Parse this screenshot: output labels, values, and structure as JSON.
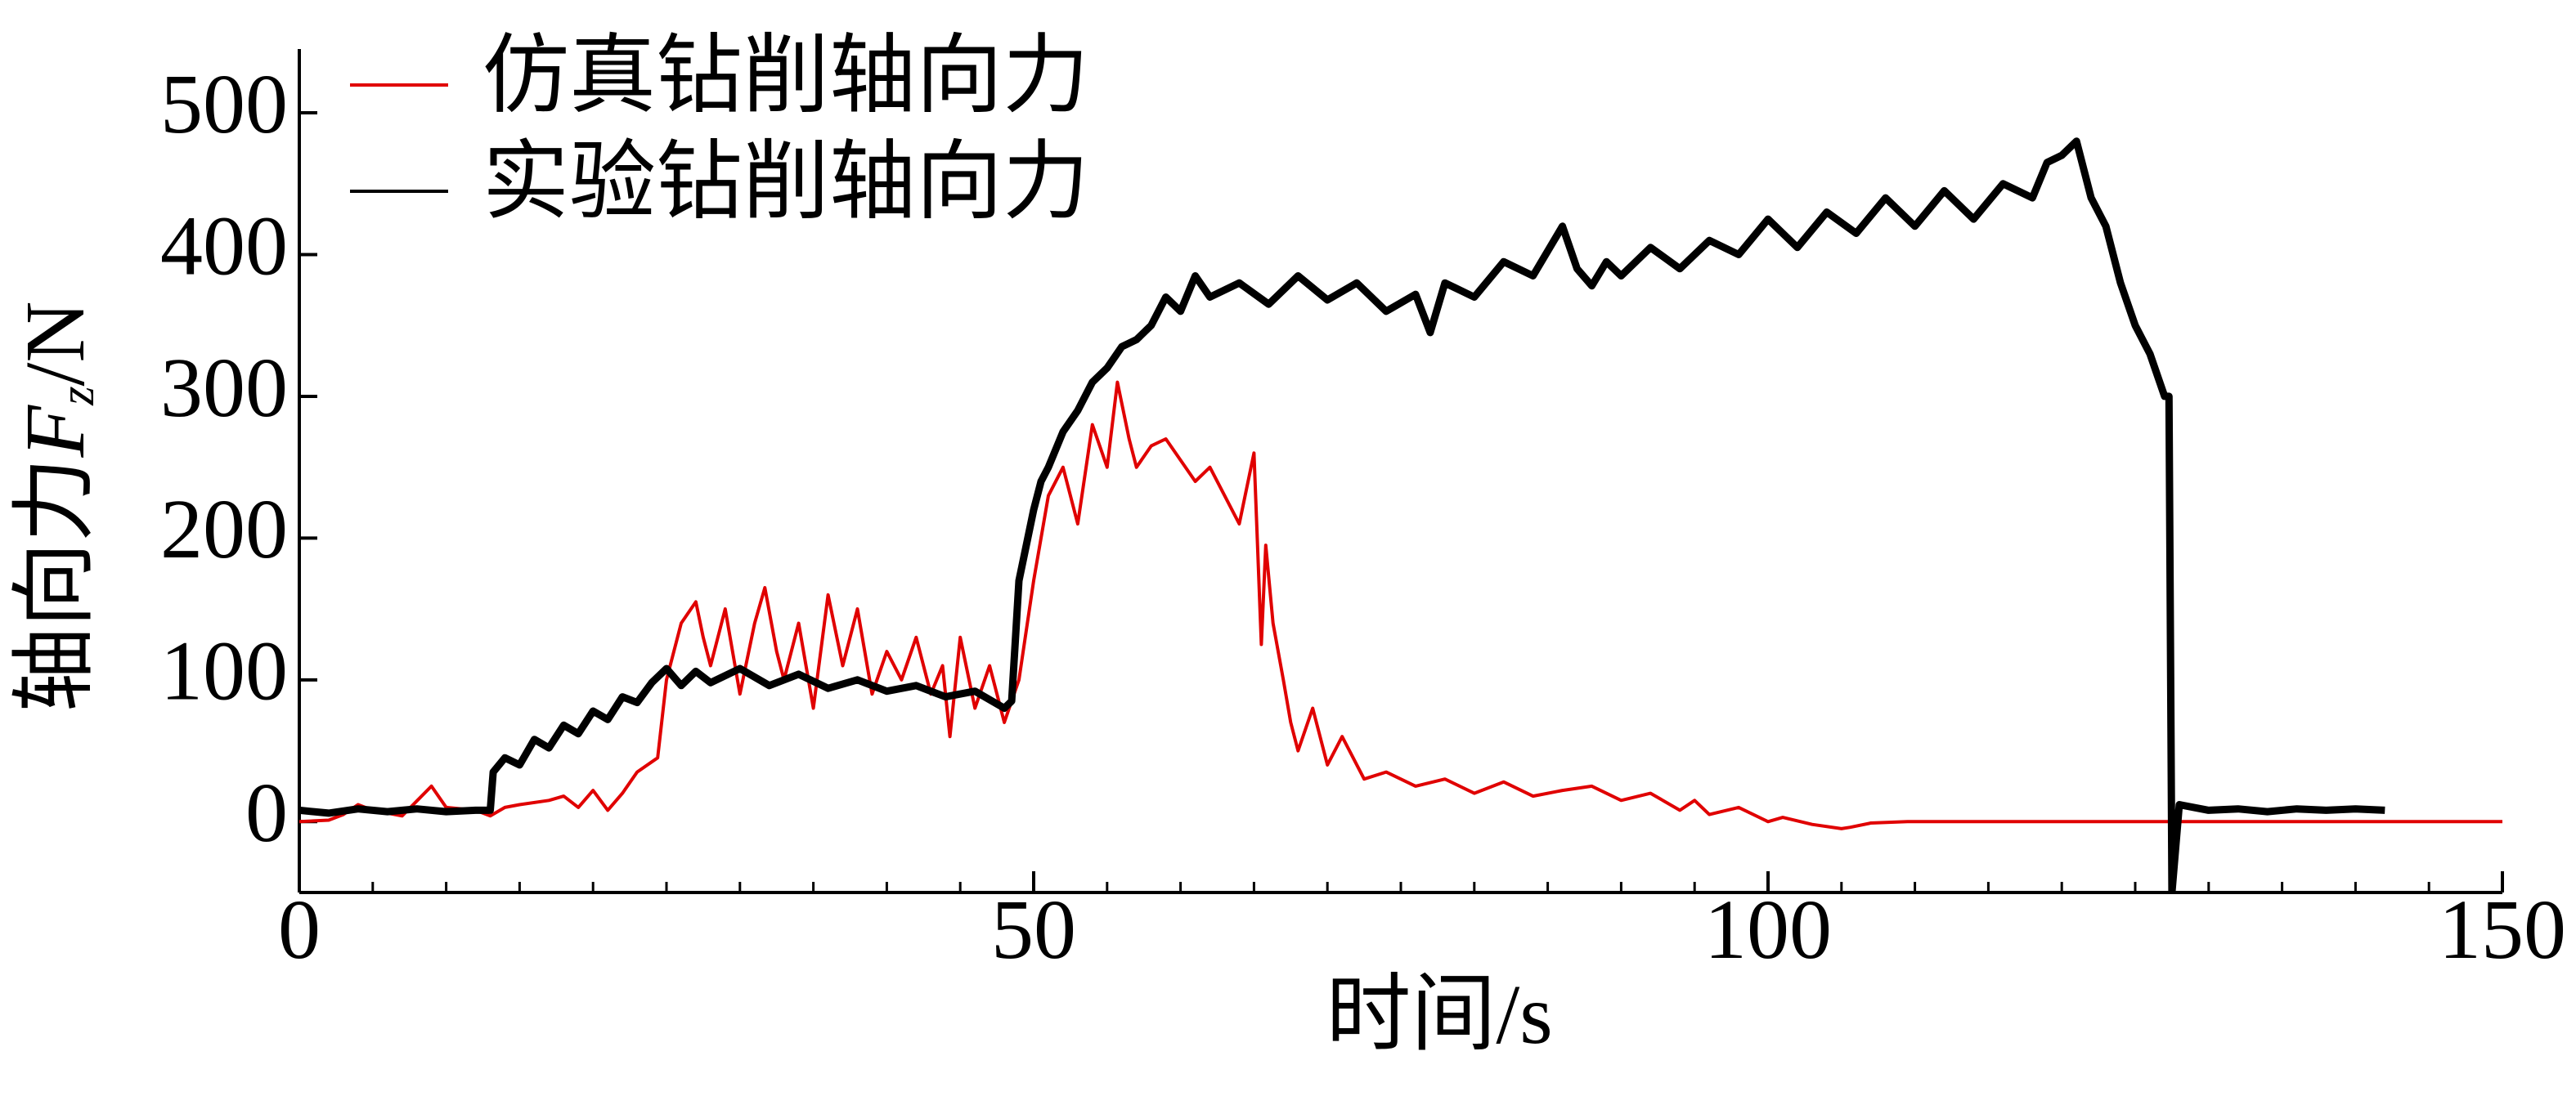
{
  "chart_data": {
    "type": "line",
    "xlabel": "时间/s",
    "ylabel": [
      "轴向力",
      "F",
      "z",
      "/N"
    ],
    "xlim": [
      0,
      150
    ],
    "ylim": [
      -50,
      545
    ],
    "xticks": [
      0,
      50,
      100,
      150
    ],
    "xminorticks": [
      5,
      10,
      15,
      20,
      25,
      30,
      35,
      40,
      45,
      55,
      60,
      65,
      70,
      75,
      80,
      85,
      90,
      95,
      105,
      110,
      115,
      120,
      125,
      130,
      135,
      140,
      145
    ],
    "yticks": [
      0,
      100,
      200,
      300,
      400,
      500
    ],
    "legend": "upper left",
    "series": [
      {
        "name": "仿真钻削轴向力",
        "color": "#e00000",
        "x": [
          0,
          2,
          3,
          4,
          5,
          7,
          9,
          10,
          12,
          13,
          14,
          15,
          17,
          18,
          19,
          20,
          21,
          22,
          23,
          24.4,
          25,
          26,
          27,
          27.5,
          28,
          29,
          30,
          31,
          31.7,
          32.5,
          33,
          34,
          35,
          36,
          37,
          38,
          39,
          40,
          41,
          42,
          43,
          43.8,
          44.3,
          45,
          46,
          47,
          48,
          49,
          50,
          51,
          52,
          53,
          54,
          55,
          55.7,
          56.5,
          57,
          58,
          59,
          60,
          61,
          62,
          63,
          64,
          65,
          65.5,
          65.8,
          66.3,
          67,
          67.5,
          68,
          69,
          70,
          71,
          72.5,
          74,
          76,
          78,
          80,
          82,
          84,
          86,
          88,
          90,
          92,
          94,
          95,
          96,
          98,
          100,
          101,
          103,
          105,
          105.6,
          107,
          109.5,
          150
        ],
        "values": [
          0,
          1,
          5,
          12,
          8,
          4,
          25,
          10,
          8,
          4,
          10,
          12,
          15,
          18,
          10,
          22,
          8,
          20,
          35,
          45,
          100,
          140,
          155,
          130,
          110,
          150,
          90,
          140,
          165,
          120,
          100,
          140,
          80,
          160,
          110,
          150,
          90,
          120,
          100,
          130,
          90,
          110,
          60,
          130,
          80,
          110,
          70,
          100,
          170,
          230,
          250,
          210,
          280,
          250,
          310,
          270,
          250,
          265,
          270,
          255,
          240,
          250,
          230,
          210,
          260,
          125,
          195,
          140,
          100,
          70,
          50,
          80,
          40,
          60,
          30,
          35,
          25,
          30,
          20,
          28,
          18,
          22,
          25,
          15,
          20,
          8,
          15,
          5,
          10,
          0,
          3,
          -2,
          -5,
          -4,
          -1,
          0,
          0
        ]
      },
      {
        "name": "实验钻削轴向力",
        "color": "#000000",
        "x": [
          0,
          2,
          4,
          6,
          8,
          10,
          12,
          13,
          13.2,
          14,
          15,
          16,
          17,
          18,
          19,
          20,
          21,
          22,
          23,
          24,
          25,
          26,
          27,
          28,
          30,
          32,
          34,
          36,
          38,
          40,
          42,
          44,
          46,
          48,
          48.5,
          49,
          49.5,
          50,
          50.5,
          51,
          52,
          53,
          54,
          55,
          56,
          57,
          58,
          59,
          60,
          61,
          62,
          64,
          66,
          68,
          70,
          72,
          74,
          76,
          77,
          78,
          80,
          82,
          84,
          86,
          87,
          88,
          89,
          90,
          92,
          94,
          96,
          98,
          100,
          102,
          104,
          106,
          108,
          110,
          112,
          114,
          116,
          118,
          119,
          120,
          121,
          122,
          123,
          124,
          125,
          126,
          127,
          127.3,
          127.5,
          128,
          130,
          132,
          134,
          136,
          138,
          140,
          142
        ],
        "values": [
          8,
          6,
          9,
          7,
          9,
          7,
          8,
          8,
          35,
          45,
          40,
          58,
          52,
          68,
          62,
          78,
          72,
          88,
          84,
          98,
          108,
          96,
          106,
          98,
          108,
          96,
          104,
          94,
          100,
          92,
          96,
          88,
          92,
          80,
          85,
          170,
          195,
          220,
          240,
          250,
          275,
          290,
          310,
          320,
          335,
          340,
          350,
          370,
          360,
          385,
          370,
          380,
          365,
          385,
          368,
          380,
          360,
          372,
          345,
          380,
          370,
          395,
          385,
          420,
          390,
          378,
          395,
          385,
          405,
          390,
          410,
          400,
          425,
          405,
          430,
          415,
          440,
          420,
          445,
          425,
          450,
          440,
          465,
          470,
          480,
          440,
          420,
          380,
          350,
          330,
          300,
          300,
          -50,
          12,
          8,
          9,
          7,
          9,
          8,
          9,
          8
        ]
      }
    ]
  }
}
